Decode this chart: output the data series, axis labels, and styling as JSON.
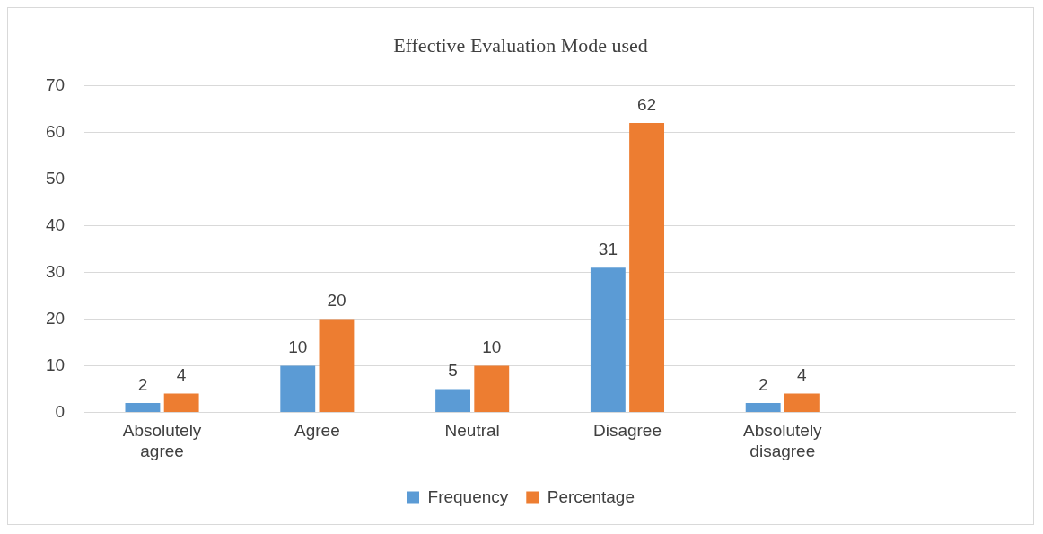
{
  "chart_data": {
    "type": "bar",
    "title": "Effective Evaluation Mode used",
    "categories": [
      "Absolutely agree",
      "Agree",
      "Neutral",
      "Disagree",
      "Absolutely disagree",
      null
    ],
    "series": [
      {
        "name": "Frequency",
        "color": "#5b9bd5",
        "values": [
          2,
          10,
          5,
          31,
          2,
          null
        ]
      },
      {
        "name": "Percentage",
        "color": "#ed7d31",
        "values": [
          4,
          20,
          10,
          62,
          4,
          null
        ]
      }
    ],
    "ylim": [
      0,
      70
    ],
    "yticks": [
      0,
      10,
      20,
      30,
      40,
      50,
      60,
      70
    ],
    "grid": "y",
    "legend": "bottom",
    "data_labels": true
  }
}
